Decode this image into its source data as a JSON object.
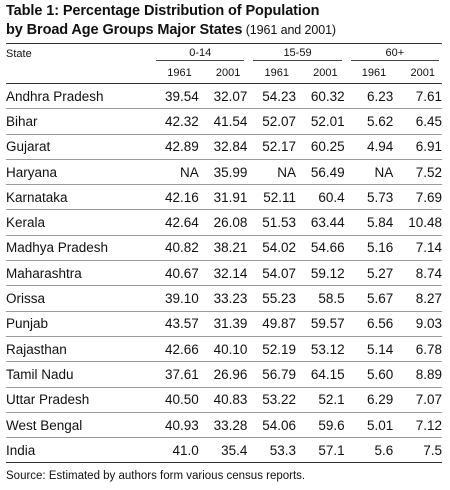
{
  "title": {
    "line1": "Table 1: Percentage Distribution of Population",
    "line2": "by Broad Age Groups Major States",
    "line2_paren": " (1961 and 2001)"
  },
  "table": {
    "state_header": "State",
    "groups": [
      "0-14",
      "15-59",
      "60+"
    ],
    "years": [
      "1961",
      "2001",
      "1961",
      "2001",
      "1961",
      "2001"
    ],
    "rows": [
      [
        "Andhra Pradesh",
        "39.54",
        "32.07",
        "54.23",
        "60.32",
        "6.23",
        "7.61"
      ],
      [
        "Bihar",
        "42.32",
        "41.54",
        "52.07",
        "52.01",
        "5.62",
        "6.45"
      ],
      [
        "Gujarat",
        "42.89",
        "32.84",
        "52.17",
        "60.25",
        "4.94",
        "6.91"
      ],
      [
        "Haryana",
        "NA",
        "35.99",
        "NA",
        "56.49",
        "NA",
        "7.52"
      ],
      [
        "Karnataka",
        "42.16",
        "31.91",
        "52.11",
        "60.4",
        "5.73",
        "7.69"
      ],
      [
        "Kerala",
        "42.64",
        "26.08",
        "51.53",
        "63.44",
        "5.84",
        "10.48"
      ],
      [
        "Madhya Pradesh",
        "40.82",
        "38.21",
        "54.02",
        "54.66",
        "5.16",
        "7.14"
      ],
      [
        "Maharashtra",
        "40.67",
        "32.14",
        "54.07",
        "59.12",
        "5.27",
        "8.74"
      ],
      [
        "Orissa",
        "39.10",
        "33.23",
        "55.23",
        "58.5",
        "5.67",
        "8.27"
      ],
      [
        "Punjab",
        "43.57",
        "31.39",
        "49.87",
        "59.57",
        "6.56",
        "9.03"
      ],
      [
        "Rajasthan",
        "42.66",
        "40.10",
        "52.19",
        "53.12",
        "5.14",
        "6.78"
      ],
      [
        "Tamil Nadu",
        "37.61",
        "26.96",
        "56.79",
        "64.15",
        "5.60",
        "8.89"
      ],
      [
        "Uttar Pradesh",
        "40.50",
        "40.83",
        "53.22",
        "52.1",
        "6.29",
        "7.07"
      ],
      [
        "West Bengal",
        "40.93",
        "33.28",
        "54.06",
        "59.6",
        "5.01",
        "7.12"
      ],
      [
        "India",
        "41.0",
        "35.4",
        "53.3",
        "57.1",
        "5.6",
        "7.5"
      ]
    ]
  },
  "source": "Source: Estimated by authors form various census reports."
}
